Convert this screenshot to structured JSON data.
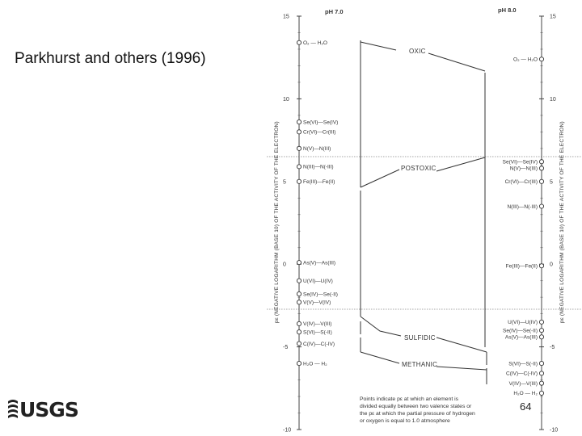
{
  "citation": "Parkhurst and others (1996)",
  "logo_text": "USGS",
  "slide_number": "64",
  "left_axis": {
    "header": "pH 7.0",
    "title": "pε (NEGATIVE LOGARITHM (BASE 10) OF THE ACTIVITY OF THE ELECTRON)",
    "ticks": [
      "15",
      "10",
      "5",
      "0",
      "-5",
      "-10"
    ]
  },
  "right_axis": {
    "header": "pH 8.0",
    "title": "pε (NEGATIVE LOGARITHM (BASE 10) OF THE ACTIVITY OF THE ELECTRON)",
    "ticks": [
      "15",
      "10",
      "5",
      "0",
      "-5",
      "-10"
    ]
  },
  "left_couples": [
    {
      "label": "O₂ — H₂O",
      "pe": 13.4
    },
    {
      "label": "Se(VI)—Se(IV)",
      "pe": 8.6
    },
    {
      "label": "Cr(VI)—Cr(III)",
      "pe": 8.0
    },
    {
      "label": "N(V)—N(III)",
      "pe": 7.0
    },
    {
      "label": "N(III)—N(-III)",
      "pe": 5.9
    },
    {
      "label": "Fe(III)—Fe(II)",
      "pe": 5.0
    },
    {
      "label": "As(V)—As(III)",
      "pe": 0.1
    },
    {
      "label": "U(VI)—U(IV)",
      "pe": -1.0
    },
    {
      "label": "Se(IV)—Se(-II)",
      "pe": -1.8
    },
    {
      "label": "V(V)—V(IV)",
      "pe": -2.3
    },
    {
      "label": "V(IV)—V(III)",
      "pe": -3.6
    },
    {
      "label": "S(VI)—S(-II)",
      "pe": -4.1
    },
    {
      "label": "C(IV)—C(-IV)",
      "pe": -4.8
    },
    {
      "label": "H₂O — H₂",
      "pe": -6.0
    }
  ],
  "right_couples": [
    {
      "label": "O₂ — H₂O",
      "pe": 12.4
    },
    {
      "label": "Se(VI)—Se(IV)",
      "pe": 6.2
    },
    {
      "label": "N(V)—N(III)",
      "pe": 5.8
    },
    {
      "label": "Cr(VI)—Cr(III)",
      "pe": 5.0
    },
    {
      "label": "N(III)—N(-III)",
      "pe": 3.5
    },
    {
      "label": "Fe(III)—Fe(II)",
      "pe": -0.1
    },
    {
      "label": "U(VI)—U(IV)",
      "pe": -3.5
    },
    {
      "label": "Se(IV)—Se(-II)",
      "pe": -4.0
    },
    {
      "label": "As(V)—As(III)",
      "pe": -4.4
    },
    {
      "label": "S(VI)—S(-II)",
      "pe": -6.0
    },
    {
      "label": "C(IV)—C(-IV)",
      "pe": -6.6
    },
    {
      "label": "V(IV)—V(III)",
      "pe": -7.2
    },
    {
      "label": "H₂O — H₂",
      "pe": -7.8
    }
  ],
  "zones": [
    {
      "label": "OXIC"
    },
    {
      "label": "POSTOXIC"
    },
    {
      "label": "SULFIDIC"
    },
    {
      "label": "METHANIC"
    }
  ],
  "note_lines": [
    "Points indicate pε at which an element is",
    "divided equally between two valence states or",
    "the pε at which the partial pressure of hydrogen",
    "or oxygen is equal to 1.0 atmosphere"
  ]
}
